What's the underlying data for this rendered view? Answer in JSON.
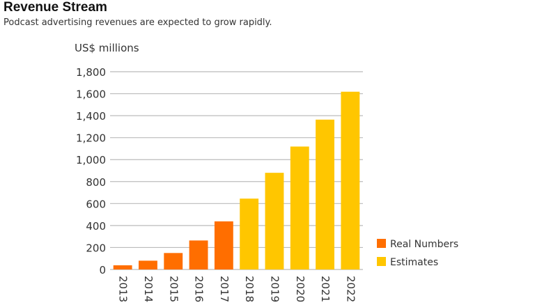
{
  "chart_data": {
    "type": "bar",
    "title": "Revenue Stream",
    "subtitle": "Podcast advertising revenues are expected to grow rapidly.",
    "ylabel": "US$ millions",
    "xlabel": "",
    "ylim": [
      0,
      1800
    ],
    "yticks": [
      0,
      200,
      400,
      600,
      800,
      1000,
      1200,
      1400,
      1600,
      1800
    ],
    "ytick_labels": [
      "0",
      "200",
      "400",
      "600",
      "800",
      "1,000",
      "1,200",
      "1,400",
      "1,600",
      "1,800"
    ],
    "categories": [
      "2013",
      "2014",
      "2015",
      "2016",
      "2017",
      "2018",
      "2019",
      "2020",
      "2021",
      "2022"
    ],
    "values": [
      38,
      80,
      150,
      264,
      438,
      645,
      880,
      1119,
      1364,
      1618
    ],
    "series_of_bar": [
      "Real Numbers",
      "Real Numbers",
      "Real Numbers",
      "Real Numbers",
      "Real Numbers",
      "Estimates",
      "Estimates",
      "Estimates",
      "Estimates",
      "Estimates"
    ],
    "legend": [
      {
        "name": "Real Numbers",
        "color": "#ff6e00"
      },
      {
        "name": "Estimates",
        "color": "#ffc600"
      }
    ],
    "legend_placement": "bottom-right",
    "grid": true
  }
}
